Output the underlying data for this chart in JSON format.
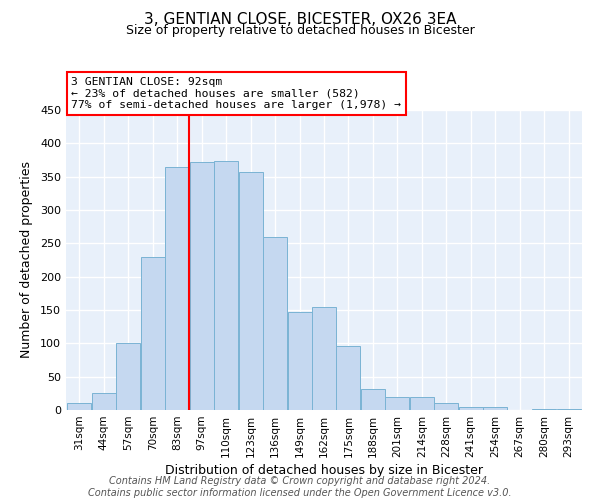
{
  "title": "3, GENTIAN CLOSE, BICESTER, OX26 3EA",
  "subtitle": "Size of property relative to detached houses in Bicester",
  "xlabel": "Distribution of detached houses by size in Bicester",
  "ylabel": "Number of detached properties",
  "bar_color": "#c5d8f0",
  "bar_edge_color": "#7ab3d4",
  "background_color": "#e8f0fa",
  "categories": [
    "31sqm",
    "44sqm",
    "57sqm",
    "70sqm",
    "83sqm",
    "97sqm",
    "110sqm",
    "123sqm",
    "136sqm",
    "149sqm",
    "162sqm",
    "175sqm",
    "188sqm",
    "201sqm",
    "214sqm",
    "228sqm",
    "241sqm",
    "254sqm",
    "267sqm",
    "280sqm",
    "293sqm"
  ],
  "values": [
    10,
    25,
    100,
    230,
    365,
    372,
    373,
    357,
    260,
    147,
    155,
    96,
    32,
    20,
    20,
    10,
    4,
    5,
    0,
    2,
    2
  ],
  "ylim": [
    0,
    450
  ],
  "yticks": [
    0,
    50,
    100,
    150,
    200,
    250,
    300,
    350,
    400,
    450
  ],
  "red_line_x": 4.5,
  "annotation_title": "3 GENTIAN CLOSE: 92sqm",
  "annotation_line1": "← 23% of detached houses are smaller (582)",
  "annotation_line2": "77% of semi-detached houses are larger (1,978) →",
  "footer1": "Contains HM Land Registry data © Crown copyright and database right 2024.",
  "footer2": "Contains public sector information licensed under the Open Government Licence v3.0.",
  "title_fontsize": 11,
  "subtitle_fontsize": 9,
  "footer_fontsize": 7,
  "axis_label_fontsize": 9,
  "tick_fontsize": 8
}
